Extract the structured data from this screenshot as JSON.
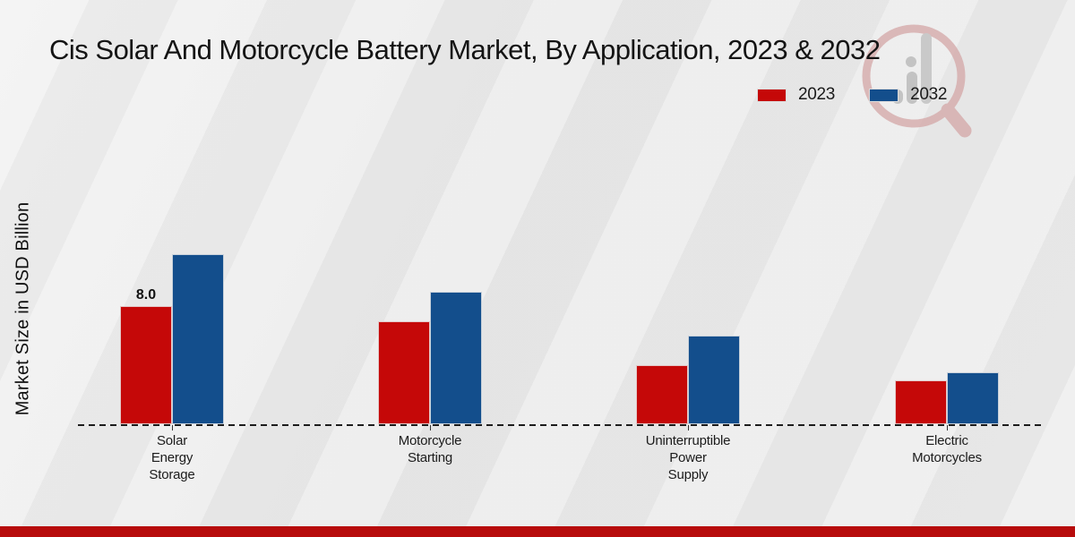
{
  "title": "Cis Solar And Motorcycle Battery Market, By Application, 2023 & 2032",
  "y_axis_label": "Market Size in USD Billion",
  "legend": {
    "items": [
      {
        "label": "2023",
        "color": "#c50808"
      },
      {
        "label": "2032",
        "color": "#134e8c"
      }
    ]
  },
  "colors": {
    "series_2023": "#c50808",
    "series_2032": "#134e8c",
    "footer_bar": "#b70c0c",
    "axis": "#1c1c1c",
    "background": "#e9e9e9"
  },
  "watermark": {
    "icon": "magnifier-bar-chart-logo"
  },
  "chart_data": {
    "type": "bar",
    "categories": [
      "Solar Energy Storage",
      "Motorcycle Starting",
      "Uninterruptible Power Supply",
      "Electric Motorcycles"
    ],
    "series": [
      {
        "name": "2023",
        "color": "#c50808",
        "values": [
          8.0,
          7.0,
          4.0,
          3.0
        ]
      },
      {
        "name": "2032",
        "color": "#134e8c",
        "values": [
          11.5,
          9.0,
          6.0,
          3.5
        ]
      }
    ],
    "data_labels": [
      {
        "series": "2023",
        "category": "Solar Energy Storage",
        "text": "8.0"
      }
    ],
    "title": "Cis Solar And Motorcycle Battery Market, By Application, 2023 & 2032",
    "xlabel": "",
    "ylabel": "Market Size in USD Billion",
    "ylim": [
      0,
      13
    ],
    "grid": false,
    "legend_position": "top-right",
    "baseline_style": "dashed",
    "y_axis_ticks_visible": false
  }
}
